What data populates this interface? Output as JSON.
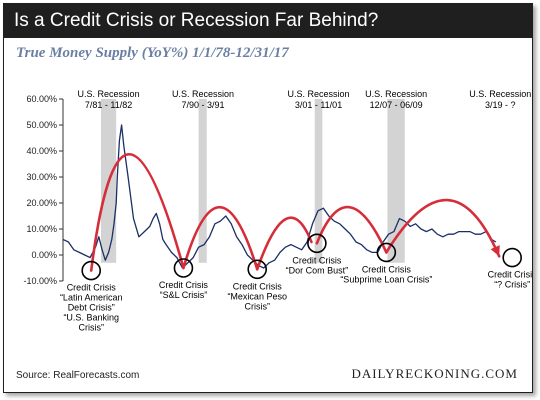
{
  "header": {
    "title": "Is a Credit Crisis or Recession Far Behind?"
  },
  "footer": {
    "source": "Source: RealForecasts.com",
    "brand": "DAILYRECKONING.COM"
  },
  "colors": {
    "line": "#1b2f66",
    "arc": "#d62d3a",
    "recession": "#d3d3d3",
    "header_bg": "#1f1f1f",
    "subtitle": "#6a7fa3"
  },
  "chart_data": {
    "type": "line",
    "title": "True Money Supply (YoY%) 1/1/78-12/31/17",
    "xlabel": "",
    "ylabel": "",
    "xlim": [
      1978.0,
      2018.0
    ],
    "ylim": [
      -10,
      60
    ],
    "yticks": [
      -10,
      0,
      10,
      20,
      30,
      40,
      50,
      60
    ],
    "ytick_labels": [
      "-10.00%",
      "0.00%",
      "10.00%",
      "20.00%",
      "30.00%",
      "40.00%",
      "50.00%",
      "60.00%"
    ],
    "grid": false,
    "series": [
      {
        "x": [
          1978.0,
          1978.5,
          1979.0,
          1979.5,
          1980.0,
          1980.5,
          1981.0,
          1981.3,
          1981.6,
          1981.9,
          1982.2,
          1982.5,
          1982.7,
          1982.9,
          1983.0,
          1983.2,
          1983.4,
          1983.6,
          1984.0,
          1984.5,
          1985.0,
          1985.5,
          1986.0,
          1986.3,
          1986.6,
          1986.9,
          1987.2,
          1987.5,
          1988.0,
          1988.5,
          1989.0,
          1989.5,
          1990.0,
          1990.5,
          1991.0,
          1991.5,
          1992.0,
          1992.5,
          1993.0,
          1993.5,
          1994.0,
          1994.5,
          1995.0,
          1995.5,
          1996.0,
          1996.5,
          1997.0,
          1997.5,
          1998.0,
          1998.5,
          1999.0,
          1999.5,
          2000.0,
          2000.5,
          2001.0,
          2001.5,
          2002.0,
          2002.5,
          2003.0,
          2003.5,
          2004.0,
          2004.5,
          2005.0,
          2005.5,
          2006.0,
          2006.5,
          2007.0,
          2007.5,
          2008.0,
          2008.5,
          2009.0,
          2009.5,
          2010.0,
          2010.5,
          2011.0,
          2011.5,
          2012.0,
          2012.5,
          2013.0,
          2013.5,
          2014.0,
          2014.5,
          2015.0,
          2015.5,
          2016.0,
          2016.5,
          2017.0,
          2017.5,
          2017.9
        ],
        "values": [
          6,
          5,
          2,
          1,
          0,
          -1,
          3,
          7,
          2,
          -2,
          1,
          6,
          12,
          20,
          30,
          44,
          50,
          42,
          30,
          14,
          7,
          9,
          11,
          14,
          16,
          12,
          6,
          4,
          1,
          -1,
          -5,
          -3,
          -1,
          3,
          4,
          7,
          12,
          13,
          15,
          12,
          7,
          4,
          0,
          -2,
          -4,
          -5,
          -3,
          -2,
          1,
          3,
          4,
          3,
          2,
          5,
          12,
          17,
          18,
          15,
          13,
          12,
          10,
          8,
          5,
          4,
          2,
          1,
          1,
          5,
          8,
          9,
          14,
          13,
          11,
          12,
          10,
          9,
          10,
          8,
          7,
          8,
          8,
          9,
          9,
          9,
          8,
          8,
          9,
          6,
          5
        ]
      }
    ],
    "recessions": [
      {
        "label": "U.S. Recession",
        "period": "7/81 - 11/82",
        "start": 1981.5,
        "end": 1982.9
      },
      {
        "label": "U.S. Recession",
        "period": "7/90 - 3/91",
        "start": 1990.5,
        "end": 1991.25
      },
      {
        "label": "U.S. Recession",
        "period": "3/01 - 11/01",
        "start": 2001.2,
        "end": 2001.9
      },
      {
        "label": "U.S. Recession",
        "period": "12/07 - 06/09",
        "start": 2007.9,
        "end": 2009.5
      },
      {
        "label": "U.S. Recession",
        "period": "3/19 - ?",
        "start": null,
        "end": null
      }
    ],
    "credit_crises": [
      {
        "lines": [
          "Credit Crisis",
          "“Latin American",
          "Debt Crisis”",
          "“U.S. Banking",
          "Crisis”"
        ],
        "x": 1980.6,
        "y": -6
      },
      {
        "lines": [
          "Credit Crisis",
          "“S&L Crisis”"
        ],
        "x": 1989.1,
        "y": -5
      },
      {
        "lines": [
          "Credit Crisis",
          "“Mexican Peso",
          "Crisis”"
        ],
        "x": 1995.9,
        "y": -5.5
      },
      {
        "lines": [
          "Credit Crisis",
          "“Dor Com Bust”"
        ],
        "x": 2001.4,
        "y": 4.5
      },
      {
        "lines": [
          "Credit Crisis",
          "“Subprime  Loan Crisis”"
        ],
        "x": 2007.8,
        "y": 1
      },
      {
        "lines": [
          "Credit Crisis",
          "“? Crisis”"
        ],
        "x": 2019.4,
        "y": -1
      }
    ],
    "arcs": [
      {
        "from": [
          1980.6,
          -6
        ],
        "ctrl": [
          1983.3,
          83
        ],
        "to": [
          1989.1,
          -5
        ]
      },
      {
        "from": [
          1989.1,
          -5
        ],
        "ctrl": [
          1992.4,
          42
        ],
        "to": [
          1995.9,
          -5.5
        ]
      },
      {
        "from": [
          1995.9,
          -5.5
        ],
        "ctrl": [
          1998.7,
          28
        ],
        "to": [
          2000.9,
          5
        ]
      },
      {
        "from": [
          2001.4,
          4.5
        ],
        "ctrl": [
          2004.2,
          34
        ],
        "to": [
          2007.8,
          1
        ]
      },
      {
        "from": [
          2007.8,
          1
        ],
        "ctrl": [
          2013.8,
          42
        ],
        "to": [
          2018.2,
          -0.5
        ]
      }
    ]
  }
}
